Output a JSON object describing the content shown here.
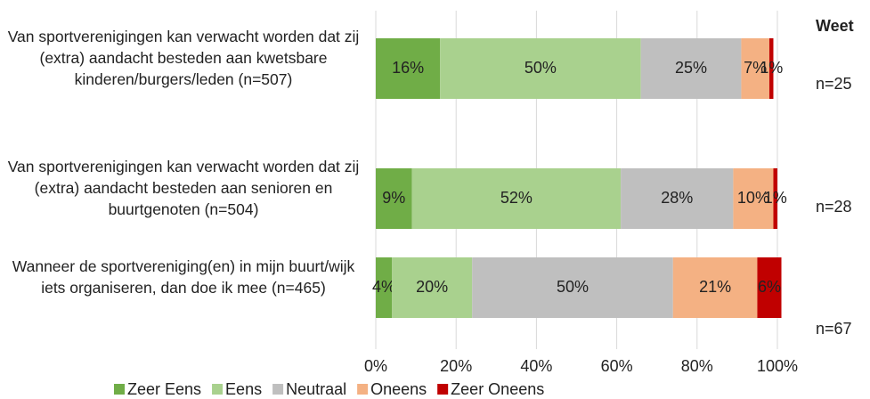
{
  "chart_data": {
    "type": "stacked-bar-horizontal",
    "categories": [
      "Van sportverenigingen kan verwacht worden dat zij (extra) aandacht besteden aan kwetsbare kinderen/burgers/leden (n=507)",
      "Van sportverenigingen kan verwacht worden dat zij (extra) aandacht besteden aan senioren en buurtgenoten (n=504)",
      "Wanneer de sportvereniging(en) in mijn buurt/wijk iets organiseren, dan doe ik mee (n=465)"
    ],
    "series": [
      {
        "name": "Zeer Eens",
        "color": "#70ad47",
        "values": [
          16,
          9,
          4
        ],
        "value_labels": [
          "16%",
          "9%",
          "4%"
        ]
      },
      {
        "name": "Eens",
        "color": "#a9d18e",
        "values": [
          50,
          52,
          20
        ],
        "value_labels": [
          "50%",
          "52%",
          "20%"
        ]
      },
      {
        "name": "Neutraal",
        "color": "#bfbfbf",
        "values": [
          25,
          28,
          50
        ],
        "value_labels": [
          "25%",
          "28%",
          "50%"
        ]
      },
      {
        "name": "Oneens",
        "color": "#f4b183",
        "values": [
          7,
          10,
          21
        ],
        "value_labels": [
          "7%",
          "10%",
          "21%"
        ]
      },
      {
        "name": "Zeer Oneens",
        "color": "#c00000",
        "values": [
          1,
          1,
          6
        ],
        "value_labels": [
          "1%",
          "1%",
          "6%"
        ]
      }
    ],
    "xlim": [
      0,
      100
    ],
    "xticks": [
      {
        "value": 0,
        "label": "0%"
      },
      {
        "value": 20,
        "label": "20%"
      },
      {
        "value": 40,
        "label": "40%"
      },
      {
        "value": 60,
        "label": "60%"
      },
      {
        "value": 80,
        "label": "80%"
      },
      {
        "value": 100,
        "label": "100%"
      }
    ],
    "grid": true,
    "legend": "bottom",
    "annotations": [
      "Weet",
      "n=25",
      "n=28",
      "n=67"
    ]
  }
}
